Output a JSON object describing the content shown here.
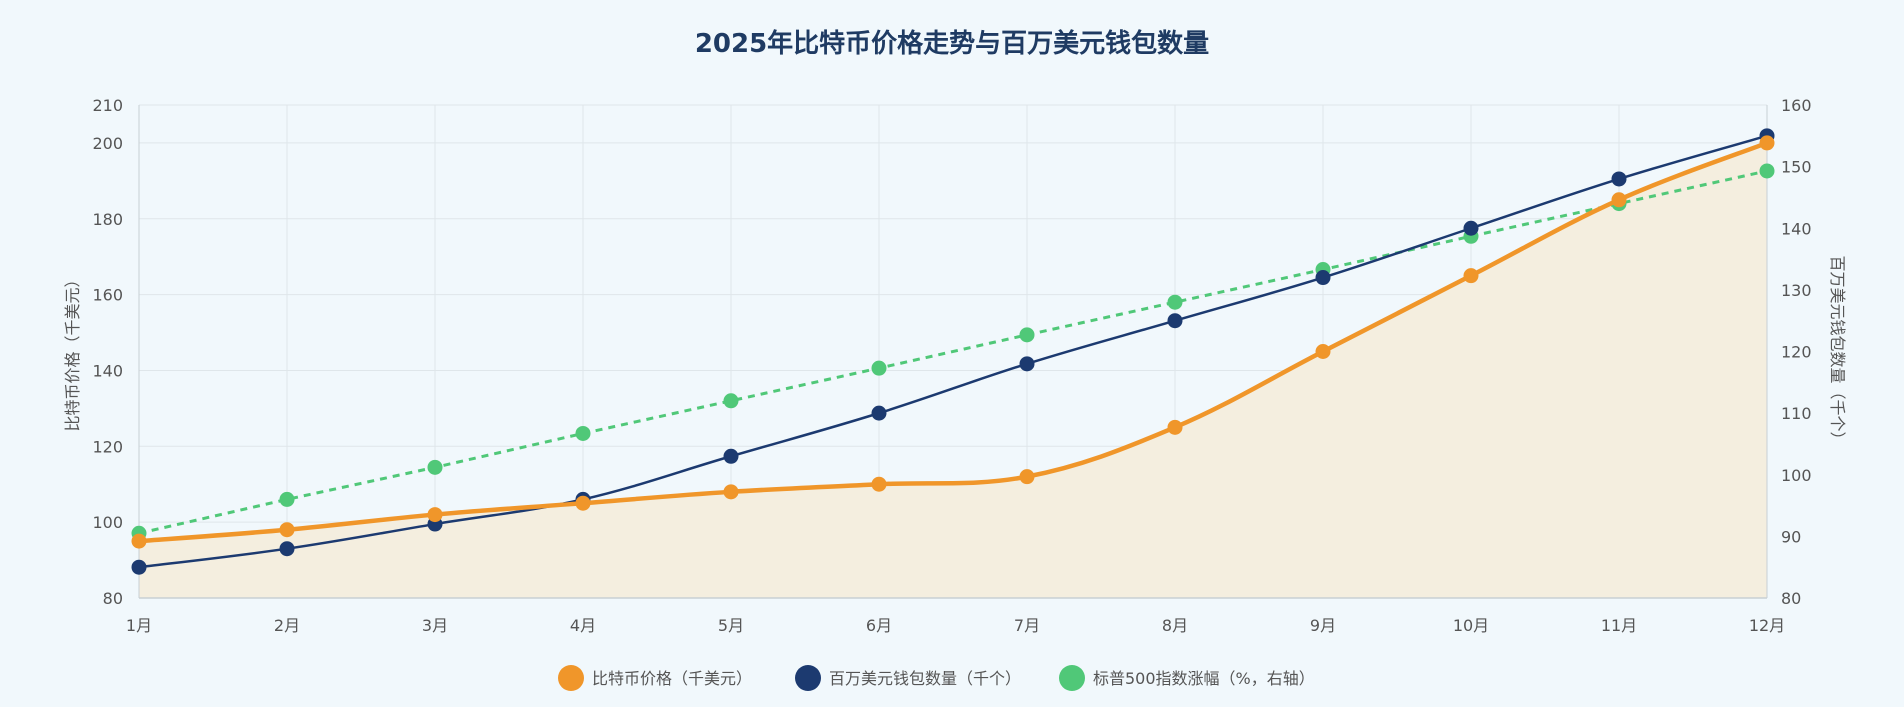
{
  "chart_data": {
    "type": "line",
    "title": "2025年比特币价格走势与百万美元钱包数量",
    "categories": [
      "1月",
      "2月",
      "3月",
      "4月",
      "5月",
      "6月",
      "7月",
      "8月",
      "9月",
      "10月",
      "11月",
      "12月"
    ],
    "y_left": {
      "label": "比特币价格（千美元）",
      "lim": [
        80,
        210
      ],
      "ticks": [
        80,
        100,
        120,
        140,
        160,
        180,
        200,
        210
      ]
    },
    "y_right": {
      "label": "百万美元钱包数量（千个）",
      "lim": [
        80,
        160
      ],
      "ticks": [
        80,
        90,
        100,
        110,
        120,
        130,
        140,
        150,
        160
      ]
    },
    "grid": true,
    "legend_position": "bottom",
    "series": [
      {
        "name": "比特币价格（千美元）",
        "axis": "left",
        "color": "#f0962a",
        "style": "solid-area",
        "values": [
          95,
          98,
          102,
          105,
          108,
          110,
          112,
          125,
          145,
          165,
          185,
          200
        ]
      },
      {
        "name": "百万美元钱包数量（千个）",
        "axis": "right",
        "color": "#1c3a70",
        "style": "solid",
        "values": [
          85,
          88,
          92,
          96,
          103,
          110,
          118,
          125,
          132,
          140,
          148,
          155
        ]
      },
      {
        "name": "标普500指数涨幅（%，右轴）",
        "axis": "right",
        "color": "#50c878",
        "style": "dashed",
        "values": [
          90.5,
          96,
          101.2,
          106.7,
          112,
          117.3,
          122.7,
          128,
          133.3,
          138.7,
          144,
          149.3
        ]
      }
    ]
  }
}
